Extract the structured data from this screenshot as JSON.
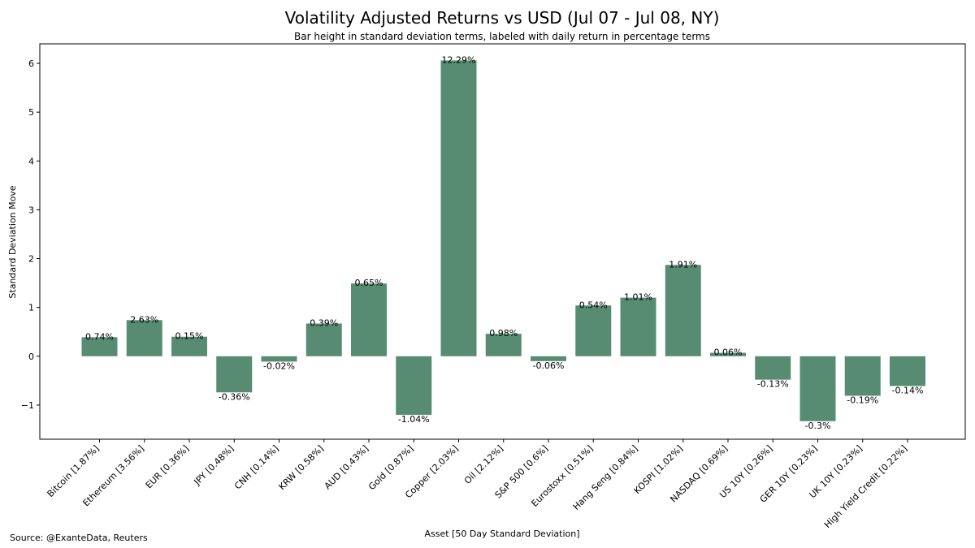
{
  "source": "Source: @ExanteData, Reuters",
  "chart_data": {
    "type": "bar",
    "title": "Volatility Adjusted Returns vs USD (Jul 07 - Jul 08, NY)",
    "subtitle": "Bar height in standard deviation terms, labeled with daily return in percentage terms",
    "xlabel": "Asset [50 Day Standard Deviation]",
    "ylabel": "Standard Deviation Move",
    "ylim": [
      -1.7,
      6.4
    ],
    "yticks": [
      -1,
      0,
      1,
      2,
      3,
      4,
      5,
      6
    ],
    "ytick_labels": [
      "−1",
      "0",
      "1",
      "2",
      "3",
      "4",
      "5",
      "6"
    ],
    "grid": false,
    "bar_color": "#578c73",
    "categories": [
      "Bitcoin [1.87%]",
      "Ethereum [3.56%]",
      "EUR [0.36%]",
      "JPY [0.48%]",
      "CNH [0.14%]",
      "KRW [0.58%]",
      "AUD [0.43%]",
      "Gold [0.87%]",
      "Copper [2.03%]",
      "Oil [2.12%]",
      "S&P 500 [0.6%]",
      "Eurostoxx [0.51%]",
      "Hang Seng [0.84%]",
      "KOSPI [1.02%]",
      "NASDAQ [0.69%]",
      "US 10Y [0.26%]",
      "GER 10Y [0.23%]",
      "UK 10Y [0.23%]",
      "High Yield Credit [0.22%]"
    ],
    "values": [
      0.39,
      0.74,
      0.4,
      -0.74,
      -0.11,
      0.67,
      1.49,
      -1.2,
      6.06,
      0.46,
      -0.1,
      1.04,
      1.2,
      1.87,
      0.07,
      -0.48,
      -1.33,
      -0.81,
      -0.61
    ],
    "labels": [
      "0.74%",
      "2.63%",
      "0.15%",
      "-0.36%",
      "-0.02%",
      "0.39%",
      "0.65%",
      "-1.04%",
      "12.29%",
      "0.98%",
      "-0.06%",
      "0.54%",
      "1.01%",
      "1.91%",
      "0.06%",
      "-0.13%",
      "-0.3%",
      "-0.19%",
      "-0.14%"
    ]
  }
}
